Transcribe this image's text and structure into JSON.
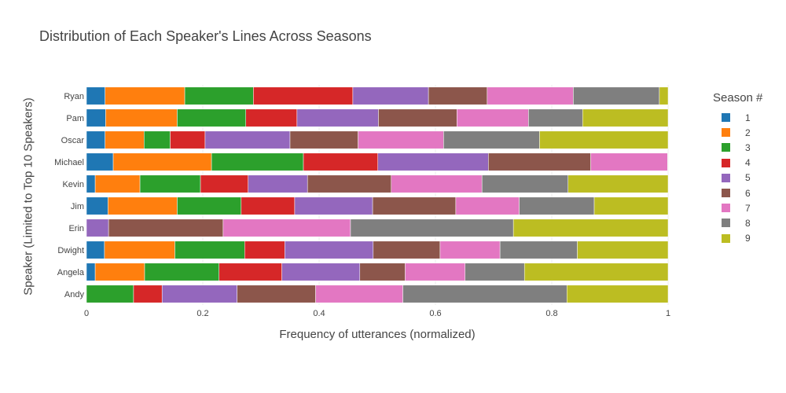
{
  "chart_data": {
    "type": "bar",
    "orientation": "horizontal",
    "barmode": "stack",
    "title": "Distribution of Each Speaker's Lines Across Seasons",
    "xlabel": "Frequency of utterances (normalized)",
    "ylabel": "Speaker (Limited to Top 10 Speakers)",
    "xlim": [
      0,
      1
    ],
    "xticks": [
      "0",
      "0.2",
      "0.4",
      "0.6",
      "0.8",
      "1"
    ],
    "categories": [
      "Andy",
      "Angela",
      "Dwight",
      "Erin",
      "Jim",
      "Kevin",
      "Michael",
      "Oscar",
      "Pam",
      "Ryan"
    ],
    "legend_title": "Season #",
    "legend_position": "right",
    "grid": true,
    "series": [
      {
        "name": "1",
        "color": "#1f77b4",
        "values": [
          0.0,
          0.015,
          0.031,
          0.0,
          0.037,
          0.015,
          0.046,
          0.032,
          0.033,
          0.032
        ]
      },
      {
        "name": "2",
        "color": "#ff7f0e",
        "values": [
          0.0,
          0.085,
          0.121,
          0.0,
          0.119,
          0.077,
          0.169,
          0.067,
          0.123,
          0.137
        ]
      },
      {
        "name": "3",
        "color": "#2ca02c",
        "values": [
          0.081,
          0.128,
          0.12,
          0.0,
          0.11,
          0.104,
          0.158,
          0.045,
          0.118,
          0.118
        ]
      },
      {
        "name": "4",
        "color": "#d62728",
        "values": [
          0.049,
          0.108,
          0.069,
          0.0,
          0.092,
          0.082,
          0.128,
          0.06,
          0.088,
          0.171
        ]
      },
      {
        "name": "5",
        "color": "#9467bd",
        "values": [
          0.129,
          0.134,
          0.152,
          0.038,
          0.134,
          0.102,
          0.19,
          0.146,
          0.14,
          0.13
        ]
      },
      {
        "name": "6",
        "color": "#8c564b",
        "values": [
          0.135,
          0.078,
          0.115,
          0.197,
          0.143,
          0.144,
          0.176,
          0.117,
          0.135,
          0.101
        ]
      },
      {
        "name": "7",
        "color": "#e377c2",
        "values": [
          0.15,
          0.103,
          0.103,
          0.219,
          0.109,
          0.156,
          0.132,
          0.147,
          0.123,
          0.148
        ]
      },
      {
        "name": "8",
        "color": "#7f7f7f",
        "values": [
          0.282,
          0.102,
          0.133,
          0.28,
          0.129,
          0.148,
          0.0,
          0.165,
          0.093,
          0.148
        ]
      },
      {
        "name": "9",
        "color": "#bcbd22",
        "values": [
          0.174,
          0.247,
          0.156,
          0.266,
          0.127,
          0.172,
          0.0,
          0.221,
          0.147,
          0.015
        ]
      }
    ]
  }
}
